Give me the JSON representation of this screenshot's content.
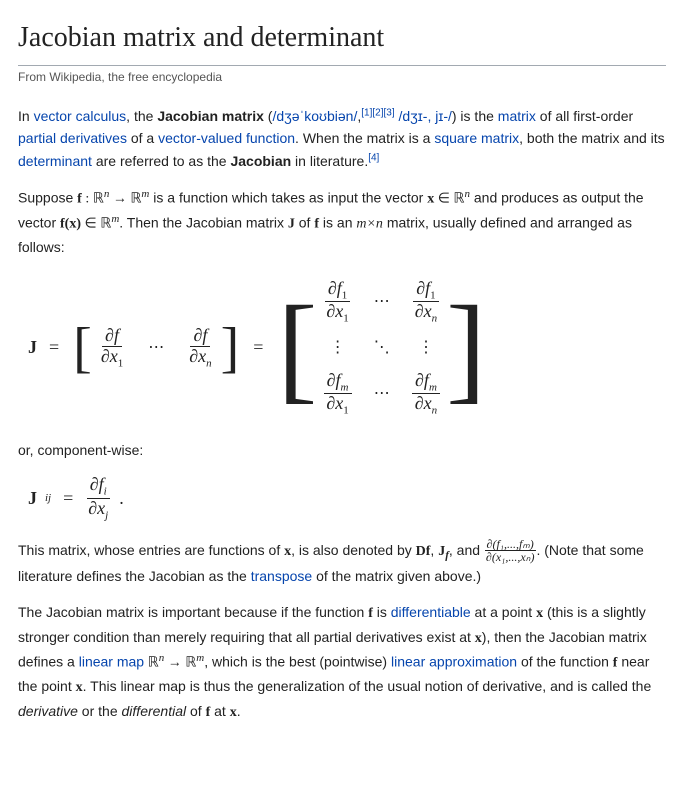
{
  "title": "Jacobian matrix and determinant",
  "siteSub": "From Wikipedia, the free encyclopedia",
  "intro": {
    "t1": "In ",
    "link_vc": "vector calculus",
    "t2": ", the ",
    "jm": "Jacobian matrix",
    "t3": " (",
    "ipa1": "/dʒəˈkoʊbiən/",
    "t4": ",",
    "ref1": "[1]",
    "ref2": "[2]",
    "ref3": "[3]",
    "ipa2": " /dʒɪ-, jɪ-/",
    "t5": ") is the ",
    "link_matrix": "matrix",
    "t6": " of all first-order ",
    "link_pd": "partial derivatives",
    "t7": " of a ",
    "link_vvf": "vector-valued function",
    "t8": ". When the matrix is a ",
    "link_sq": "square matrix",
    "t9": ", both the matrix and its ",
    "link_det": "determinant",
    "t10": " are referred to as the ",
    "jacobian": "Jacobian",
    "t11": " in literature.",
    "ref4": "[4]"
  },
  "p2": {
    "t1": "Suppose ",
    "f": "f",
    "colon": " : ",
    "Rn": "ℝ",
    "n": "n",
    "arrow": " → ",
    "Rm": "ℝ",
    "m": "m",
    "t2": " is a function which takes as input the vector ",
    "x": "x",
    "in": " ∈ ",
    "t3": " and produces as output the vector ",
    "fx": "f(x)",
    "t4": ". Then the Jacobian matrix ",
    "J": "J",
    "t5": " of ",
    "t6": " is an ",
    "mxn": "m×n",
    "t7": " matrix, usually defined and arranged as follows:"
  },
  "eq": {
    "J": "J",
    "eq": " = ",
    "df": "∂f",
    "dx1": "∂x",
    "one": "1",
    "n": "n",
    "m": "m",
    "cdots": "⋯",
    "vdots": "⋮",
    "ddots": "⋱",
    "df1": "∂f",
    "dfm": "∂f"
  },
  "or": "or, component-wise:",
  "eq2": {
    "J": "J",
    "ij": "ij",
    "eq": " = ",
    "dfi": "∂f",
    "i": "i",
    "dxj": "∂x",
    "j": "j",
    "period": "."
  },
  "p3": {
    "t1": "This matrix, whose entries are functions of ",
    "x": "x",
    "t2": ", is also denoted by ",
    "Df": "Df",
    "c1": ", ",
    "Jf": "J",
    "fsub": "f",
    "c2": ", and ",
    "frac_top": "∂(f₁,...,fₘ)",
    "frac_bot": "∂(x₁,...,xₙ)",
    "t3": ". (Note that some literature defines the Jacobian as the ",
    "link_tr": "transpose",
    "t4": " of the matrix given above.)"
  },
  "p4": {
    "t1": "The Jacobian matrix is important because if the function ",
    "f": "f",
    "t2": " is ",
    "link_diff": "differentiable",
    "t3": " at a point ",
    "x": "x",
    "t4": " (this is a slightly stronger condition than merely requiring that all partial derivatives exist at ",
    "t5": "), then the Jacobian matrix defines a ",
    "link_lm": "linear map",
    "Rn": " ℝ",
    "n": "n",
    "arrow": " → ",
    "m": "m",
    "t6": ", which is the best (pointwise) ",
    "link_la": "linear approximation",
    "t7": " of the function ",
    "t8": " near the point ",
    "t9": ". This linear map is thus the generalization of the usual notion of derivative, and is called the ",
    "deriv": "derivative",
    "t10": " or the ",
    "diffw": "differential",
    "t11": " of ",
    "t12": " at ",
    "t13": "."
  },
  "style": {
    "link_color": "#0645ad",
    "body_font": "Helvetica Neue, Arial, sans-serif",
    "heading_font": "Georgia, Times New Roman, serif",
    "body_fontsize": 14,
    "math_fontsize": 18
  }
}
